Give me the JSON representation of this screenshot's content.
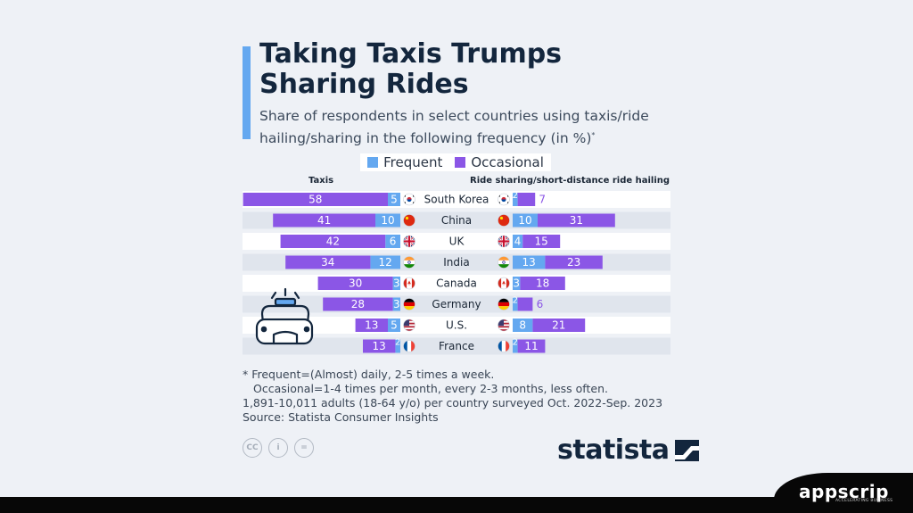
{
  "title": "Taking Taxis Trumps Sharing Rides",
  "subtitle": "Share of respondents in select countries using taxis/ride hailing/sharing in the following frequency (in %)",
  "subtitle_mark": "*",
  "legend": [
    {
      "label": "Frequent",
      "color": "#64a8f0"
    },
    {
      "label": "Occasional",
      "color": "#8b56e6"
    }
  ],
  "colors": {
    "frequent": "#64a8f0",
    "occasional": "#8b56e6",
    "row_band": "#e0e5ed",
    "accent": "#64a8f0"
  },
  "chart_data": {
    "type": "bar",
    "orientation": "horizontal",
    "stacked": true,
    "layout": "butterfly",
    "categories": [
      "South Korea",
      "China",
      "UK",
      "India",
      "Canada",
      "Germany",
      "U.S.",
      "France"
    ],
    "panels": [
      {
        "name": "Taxis",
        "series": [
          {
            "name": "Frequent",
            "values": [
              5,
              10,
              6,
              12,
              3,
              3,
              5,
              2
            ]
          },
          {
            "name": "Occasional",
            "values": [
              58,
              41,
              42,
              34,
              30,
              28,
              13,
              13
            ]
          }
        ]
      },
      {
        "name": "Ride sharing/short-distance ride hailing",
        "series": [
          {
            "name": "Frequent",
            "values": [
              2,
              10,
              4,
              13,
              3,
              2,
              8,
              2
            ]
          },
          {
            "name": "Occasional",
            "values": [
              7,
              31,
              15,
              23,
              18,
              6,
              21,
              11
            ]
          }
        ]
      }
    ],
    "flags": [
      "kr-flag-icon",
      "cn-flag-icon",
      "uk-flag-icon",
      "in-flag-icon",
      "ca-flag-icon",
      "de-flag-icon",
      "us-flag-icon",
      "fr-flag-icon"
    ]
  },
  "notes": {
    "line1": "* Frequent=(Almost) daily, 2-5 times a week.",
    "line2": "Occasional=1-4 times per month, every 2-3 months, less often.",
    "line3": "1,891-10,011 adults (18-64 y/o) per country surveyed Oct. 2022-Sep. 2023",
    "line4": "Source: Statista Consumer Insights"
  },
  "icons": {
    "cc": "CC",
    "person": "i",
    "equal": "="
  },
  "brand": {
    "statista": "statista",
    "appscrip": "appscrip",
    "appscrip_tagline": "ACCELERATING BUSINESS"
  }
}
